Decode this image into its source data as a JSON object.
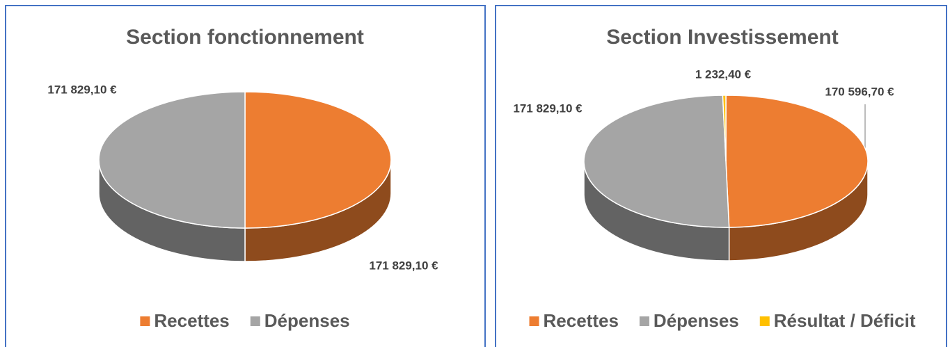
{
  "chart_data": [
    {
      "type": "pie",
      "title": "Section fonctionnement",
      "categories": [
        "Recettes",
        "Dépenses"
      ],
      "values": [
        171829.1,
        171829.1
      ],
      "value_labels": [
        "171 829,10 €",
        "171 829,10 €"
      ],
      "colors": [
        "#ed7d31",
        "#a5a5a5"
      ]
    },
    {
      "type": "pie",
      "title": "Section Investissement",
      "categories": [
        "Recettes",
        "Dépenses",
        "Résultat / Déficit"
      ],
      "values": [
        170596.7,
        171829.1,
        1232.4
      ],
      "value_labels": [
        "170 596,70 €",
        "171 829,10 €",
        "1 232,40 €"
      ],
      "colors": [
        "#ed7d31",
        "#a5a5a5",
        "#ffc000"
      ]
    }
  ]
}
